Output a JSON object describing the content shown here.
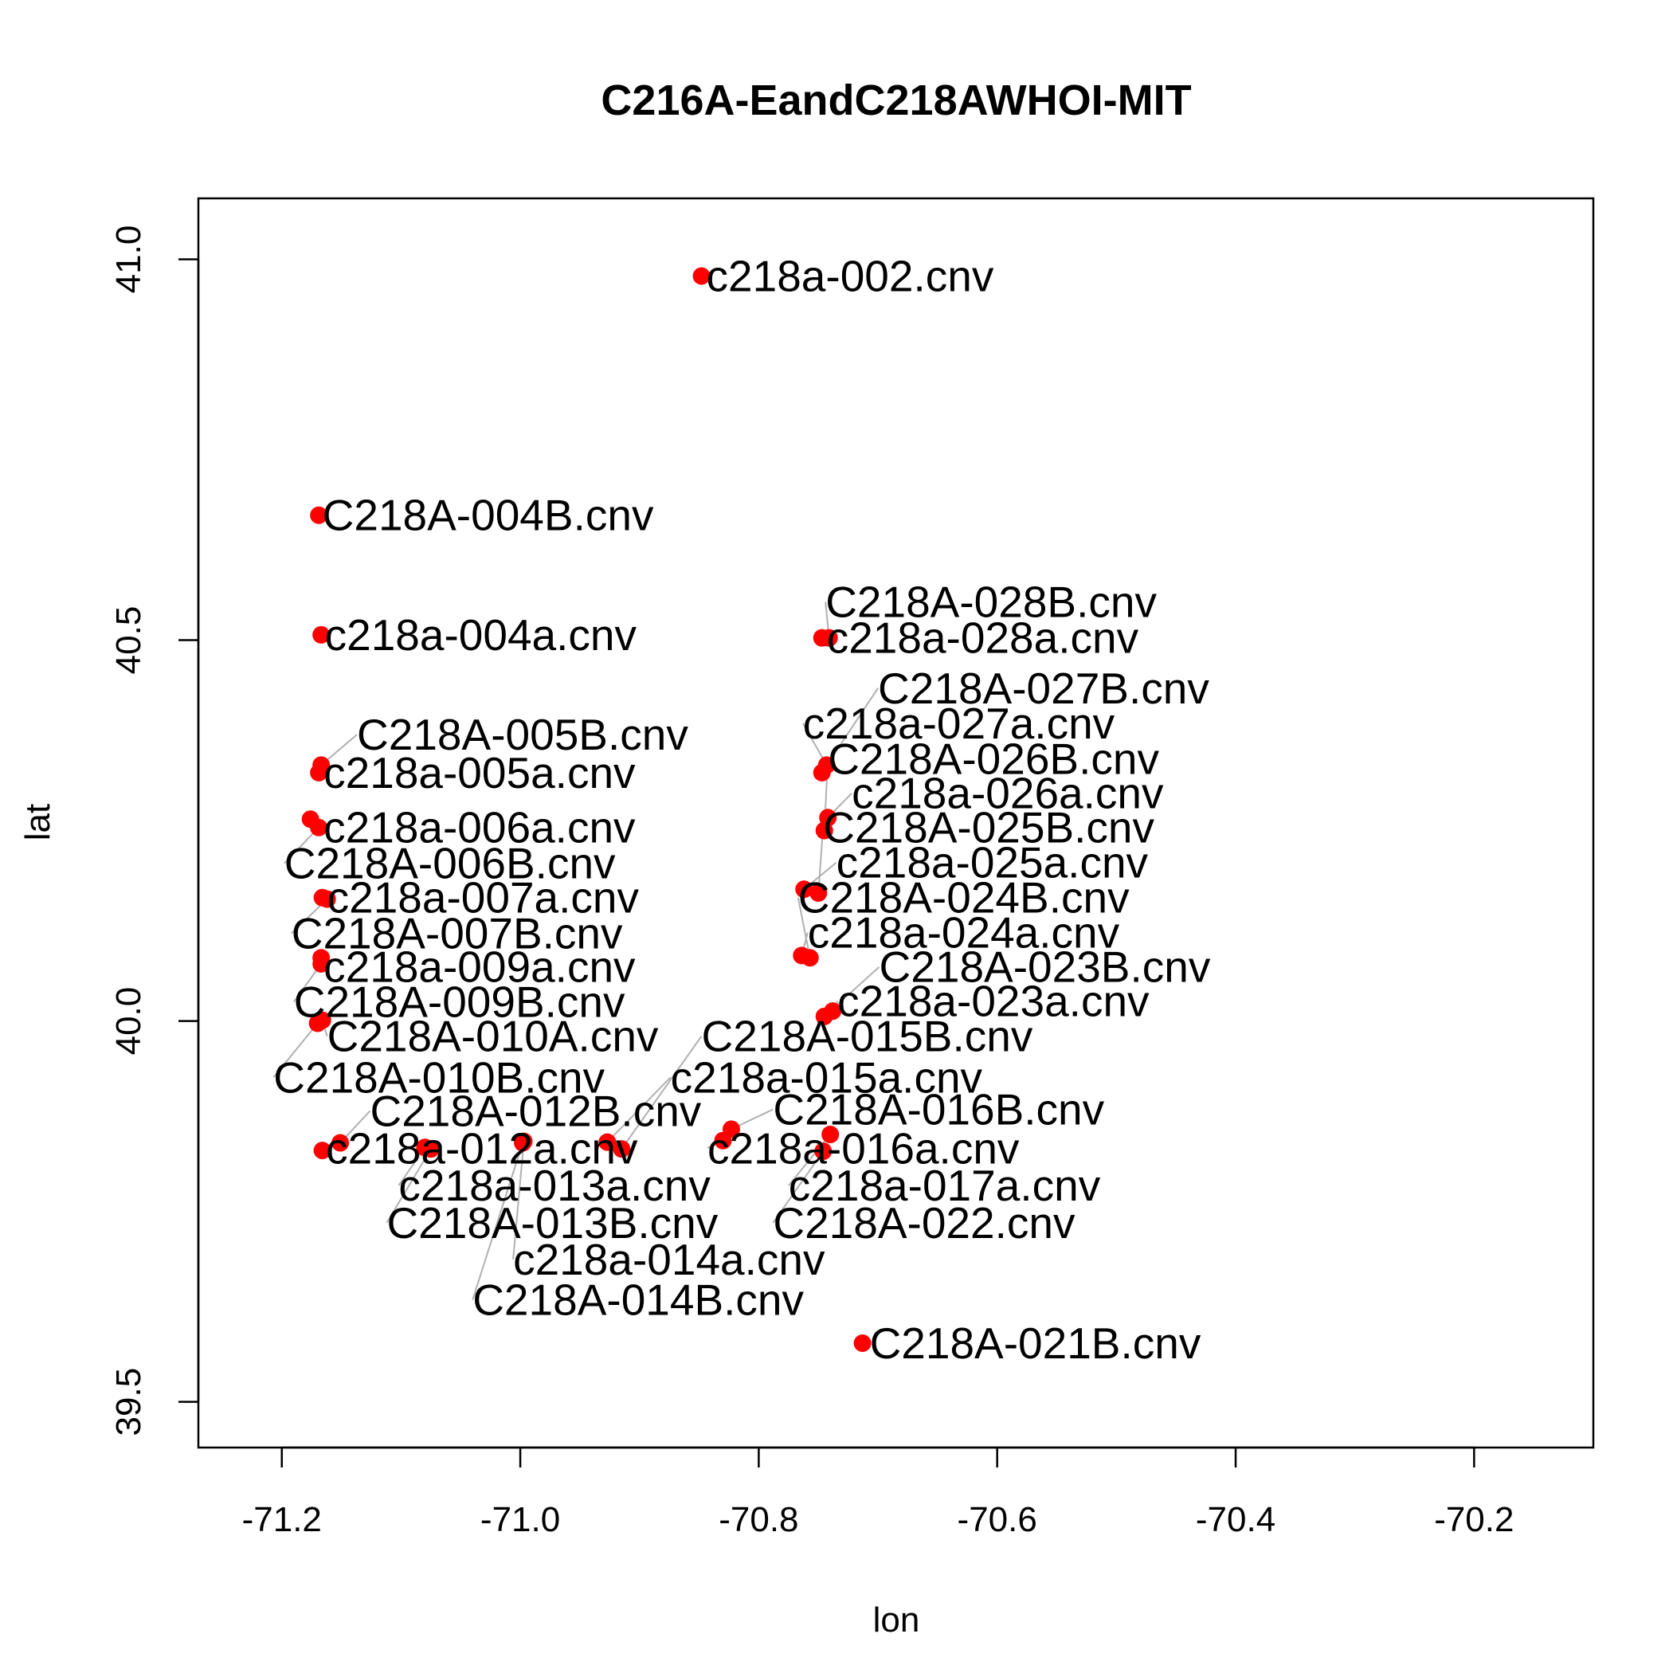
{
  "chart_data": {
    "type": "scatter",
    "title": "C216A-EandC218AWHOI-MIT",
    "xlabel": "lon",
    "ylabel": "lat",
    "xlim": [
      -71.27,
      -70.1
    ],
    "ylim": [
      39.44,
      41.08
    ],
    "xticks": [
      "-71.2",
      "-71.0",
      "-70.8",
      "-70.6",
      "-70.4",
      "-70.2"
    ],
    "yticks": [
      "39.5",
      "40.0",
      "40.5",
      "41.0"
    ],
    "grid": false,
    "point_color": "#ff0000",
    "leader_color": "#b0b0b0",
    "points": [
      {
        "name": "c218a-002.cnv",
        "lon": -70.848,
        "lat": 40.978,
        "label_lon": -70.844,
        "label_lat": 40.978
      },
      {
        "name": "C218A-004B.cnv",
        "lon": -71.169,
        "lat": 40.664,
        "label_lon": -71.166,
        "label_lat": 40.664
      },
      {
        "name": "c218a-004a.cnv",
        "lon": -71.167,
        "lat": 40.507,
        "label_lon": -71.164,
        "label_lat": 40.507
      },
      {
        "name": "C218A-005B.cnv",
        "lon": -71.167,
        "lat": 40.336,
        "label_lon": -71.137,
        "label_lat": 40.376
      },
      {
        "name": "c218a-005a.cnv",
        "lon": -71.169,
        "lat": 40.326,
        "label_lon": -71.165,
        "label_lat": 40.326
      },
      {
        "name": "c218a-006a.cnv",
        "lon": -71.176,
        "lat": 40.265,
        "label_lon": -71.165,
        "label_lat": 40.254
      },
      {
        "name": "C218A-006B.cnv",
        "lon": -71.169,
        "lat": 40.254,
        "label_lon": -71.198,
        "label_lat": 40.207
      },
      {
        "name": "c218a-007a.cnv",
        "lon": -71.166,
        "lat": 40.162,
        "label_lon": -71.162,
        "label_lat": 40.162
      },
      {
        "name": "C218A-007B.cnv",
        "lon": -71.162,
        "lat": 40.16,
        "label_lon": -71.192,
        "label_lat": 40.115
      },
      {
        "name": "c218a-009a.cnv",
        "lon": -71.167,
        "lat": 40.083,
        "label_lon": -71.165,
        "label_lat": 40.071
      },
      {
        "name": "C218A-009B.cnv",
        "lon": -71.167,
        "lat": 40.075,
        "label_lon": -71.19,
        "label_lat": 40.025
      },
      {
        "name": "C218A-010A.cnv",
        "lon": -71.166,
        "lat": 40.001,
        "label_lon": -71.162,
        "label_lat": 39.98
      },
      {
        "name": "C218A-010B.cnv",
        "lon": -71.17,
        "lat": 39.997,
        "label_lon": -71.207,
        "label_lat": 39.926
      },
      {
        "name": "C218A-012B.cnv",
        "lon": -71.151,
        "lat": 39.84,
        "label_lon": -71.126,
        "label_lat": 39.882
      },
      {
        "name": "c218a-012a.cnv",
        "lon": -71.166,
        "lat": 39.83,
        "label_lon": -71.163,
        "label_lat": 39.833
      },
      {
        "name": "c218a-013a.cnv",
        "lon": -71.08,
        "lat": 39.834,
        "label_lon": -71.102,
        "label_lat": 39.784
      },
      {
        "name": "C218A-013B.cnv",
        "lon": -71.075,
        "lat": 39.832,
        "label_lon": -71.112,
        "label_lat": 39.735
      },
      {
        "name": "c218a-014a.cnv",
        "lon": -70.997,
        "lat": 39.842,
        "label_lon": -71.006,
        "label_lat": 39.687
      },
      {
        "name": "C218A-014B.cnv",
        "lon": -70.998,
        "lat": 39.84,
        "label_lon": -71.04,
        "label_lat": 39.634
      },
      {
        "name": "c218a-015a.cnv",
        "lon": -70.927,
        "lat": 39.841,
        "label_lon": -70.874,
        "label_lat": 39.926
      },
      {
        "name": "C218A-015B.cnv",
        "lon": -70.915,
        "lat": 39.832,
        "label_lon": -70.848,
        "label_lat": 39.98
      },
      {
        "name": "C218A-016B.cnv",
        "lon": -70.823,
        "lat": 39.858,
        "label_lon": -70.788,
        "label_lat": 39.884
      },
      {
        "name": "c218a-016a.cnv",
        "lon": -70.83,
        "lat": 39.843,
        "label_lon": -70.843,
        "label_lat": 39.833
      },
      {
        "name": "c218a-017a.cnv",
        "lon": -70.74,
        "lat": 39.851,
        "label_lon": -70.775,
        "label_lat": 39.784
      },
      {
        "name": "C218A-022.cnv",
        "lon": -70.746,
        "lat": 39.829,
        "label_lon": -70.788,
        "label_lat": 39.735
      },
      {
        "name": "C218A-021B.cnv",
        "lon": -70.713,
        "lat": 39.577,
        "label_lon": -70.707,
        "label_lat": 39.577
      },
      {
        "name": "c218a-023a.cnv",
        "lon": -70.738,
        "lat": 40.013,
        "label_lon": -70.734,
        "label_lat": 40.026
      },
      {
        "name": "C218A-023B.cnv",
        "lon": -70.745,
        "lat": 40.006,
        "label_lon": -70.699,
        "label_lat": 40.071
      },
      {
        "name": "c218a-024a.cnv",
        "lon": -70.764,
        "lat": 40.086,
        "label_lon": -70.759,
        "label_lat": 40.116
      },
      {
        "name": "C218A-024B.cnv",
        "lon": -70.757,
        "lat": 40.083,
        "label_lon": -70.767,
        "label_lat": 40.162
      },
      {
        "name": "c218a-025a.cnv",
        "lon": -70.762,
        "lat": 40.173,
        "label_lon": -70.735,
        "label_lat": 40.208
      },
      {
        "name": "C218A-025B.cnv",
        "lon": -70.75,
        "lat": 40.168,
        "label_lon": -70.746,
        "label_lat": 40.254
      },
      {
        "name": "c218a-026a.cnv",
        "lon": -70.742,
        "lat": 40.267,
        "label_lon": -70.722,
        "label_lat": 40.299
      },
      {
        "name": "C218A-026B.cnv",
        "lon": -70.745,
        "lat": 40.25,
        "label_lon": -70.742,
        "label_lat": 40.344
      },
      {
        "name": "c218a-027a.cnv",
        "lon": -70.743,
        "lat": 40.336,
        "label_lon": -70.763,
        "label_lat": 40.391
      },
      {
        "name": "C218A-027B.cnv",
        "lon": -70.747,
        "lat": 40.326,
        "label_lon": -70.7,
        "label_lat": 40.437
      },
      {
        "name": "c218a-028a.cnv",
        "lon": -70.747,
        "lat": 40.503,
        "label_lon": -70.743,
        "label_lat": 40.503
      },
      {
        "name": "C218A-028B.cnv",
        "lon": -70.741,
        "lat": 40.503,
        "label_lon": -70.744,
        "label_lat": 40.55
      }
    ]
  }
}
